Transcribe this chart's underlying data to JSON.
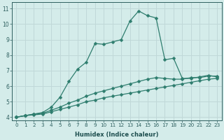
{
  "xlabel": "Humidex (Indice chaleur)",
  "bg_color": "#d4ecea",
  "grid_color": "#c0d8d8",
  "line_color": "#2e7d6e",
  "xlim": [
    -0.5,
    23.5
  ],
  "ylim": [
    3.8,
    11.4
  ],
  "xticks": [
    0,
    1,
    2,
    3,
    4,
    5,
    6,
    7,
    8,
    9,
    10,
    11,
    12,
    13,
    14,
    15,
    16,
    17,
    18,
    19,
    20,
    21,
    22,
    23
  ],
  "yticks": [
    4,
    5,
    6,
    7,
    8,
    9,
    10,
    11
  ],
  "line1_x": [
    0,
    1,
    2,
    3,
    4,
    5,
    6,
    7,
    8,
    9,
    10,
    11,
    12,
    13,
    14,
    15,
    16,
    17,
    18,
    19,
    20,
    21,
    22,
    23
  ],
  "line1_y": [
    4.0,
    4.1,
    4.15,
    4.2,
    4.35,
    4.5,
    4.65,
    4.8,
    5.0,
    5.1,
    5.25,
    5.35,
    5.45,
    5.55,
    5.65,
    5.75,
    5.85,
    5.95,
    6.05,
    6.15,
    6.25,
    6.35,
    6.45,
    6.5
  ],
  "line2_x": [
    0,
    1,
    2,
    3,
    4,
    5,
    6,
    7,
    8,
    9,
    10,
    11,
    12,
    13,
    14,
    15,
    16,
    17,
    18,
    19,
    20,
    21,
    22,
    23
  ],
  "line2_y": [
    4.0,
    4.1,
    4.2,
    4.25,
    4.45,
    4.65,
    4.9,
    5.1,
    5.35,
    5.55,
    5.7,
    5.85,
    6.0,
    6.15,
    6.3,
    6.45,
    6.55,
    6.5,
    6.45,
    6.45,
    6.55,
    6.55,
    6.65,
    6.65
  ],
  "line3_x": [
    0,
    1,
    2,
    3,
    4,
    5,
    6,
    7,
    8,
    9,
    10,
    11,
    12,
    13,
    14,
    15,
    16,
    17,
    18,
    19,
    20,
    21,
    22,
    23
  ],
  "line3_y": [
    4.0,
    4.1,
    4.2,
    4.3,
    4.65,
    5.3,
    6.3,
    7.1,
    7.55,
    8.75,
    8.7,
    8.85,
    9.0,
    10.2,
    10.85,
    10.55,
    10.4,
    7.7,
    7.8,
    6.5,
    6.5,
    6.6,
    6.7,
    6.6
  ],
  "marker": "D",
  "markersize": 2.5,
  "tick_fontsize": 5.2,
  "xlabel_fontsize": 6.0
}
